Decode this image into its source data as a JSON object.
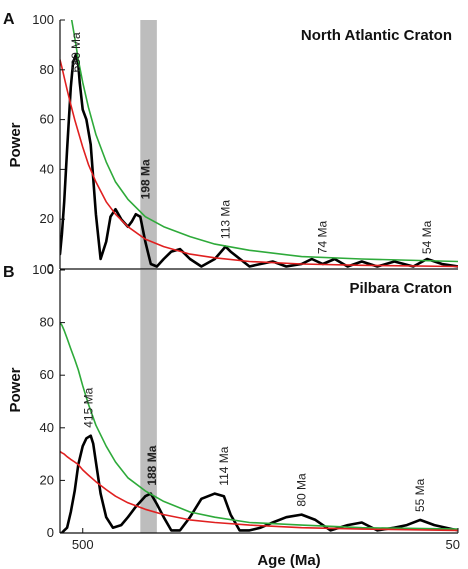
{
  "chart_data": [
    {
      "type": "line",
      "panel": "A",
      "title": "North Atlantic Craton",
      "xlabel": "",
      "ylabel": "Power",
      "x_tick_labels": [],
      "y_ticks": [
        0,
        20,
        40,
        60,
        80,
        100
      ],
      "ylim": [
        0,
        100
      ],
      "xlim_Ma": [
        1100,
        50
      ],
      "x_scale": "reciprocal",
      "highlight_band_Ma": [
        210,
        180
      ],
      "highlight_color": "#bdbdbd",
      "series": [
        {
          "color": "#000000",
          "x": [
            1100,
            1000,
            900,
            800,
            700,
            650,
            600,
            560,
            540,
            500,
            460,
            420,
            380,
            350,
            320,
            300,
            280,
            260,
            240,
            230,
            220,
            210,
            200,
            190,
            180,
            170,
            160,
            150,
            140,
            130,
            120,
            113,
            110,
            100,
            95,
            90,
            85,
            80,
            77,
            74,
            71,
            68,
            65,
            62,
            59,
            56,
            54,
            52,
            50
          ],
          "y": [
            6,
            14,
            27,
            48,
            73,
            83,
            86,
            82,
            75,
            64,
            60,
            50,
            22,
            4,
            11,
            21,
            24,
            20,
            17,
            19,
            22,
            21,
            11,
            2,
            1,
            4,
            7,
            8,
            4,
            1,
            4,
            9,
            7,
            1,
            2,
            3,
            1,
            2,
            4,
            2,
            4,
            1,
            3,
            1,
            3,
            1,
            4,
            2,
            1
          ]
        },
        {
          "color": "#2eaa3a",
          "x": [
            680,
            620,
            560,
            500,
            440,
            380,
            320,
            280,
            240,
            200,
            170,
            140,
            120,
            100,
            80,
            65,
            50
          ],
          "y": [
            100,
            93,
            84,
            75,
            65,
            54,
            43,
            35,
            28,
            21,
            17,
            13,
            10,
            7.5,
            5,
            4,
            3
          ]
        },
        {
          "color": "#e02020",
          "x": [
            1100,
            1000,
            900,
            800,
            700,
            620,
            560,
            500,
            440,
            380,
            320,
            280,
            240,
            200,
            170,
            140,
            120,
            100,
            80,
            65,
            50
          ],
          "y": [
            84,
            81,
            77,
            72,
            66,
            60,
            55,
            49,
            42,
            35,
            27,
            22,
            17,
            12,
            9,
            6,
            4.5,
            3,
            2,
            1.5,
            1
          ]
        }
      ],
      "annotations": [
        {
          "text": "680 Ma",
          "x_Ma": 600,
          "y": 79,
          "bold": false
        },
        {
          "text": "198 Ma",
          "x_Ma": 200,
          "y": 28,
          "bold": true
        },
        {
          "text": "113 Ma",
          "x_Ma": 113,
          "y": 12,
          "bold": false
        },
        {
          "text": "74 Ma",
          "x_Ma": 74,
          "y": 6,
          "bold": false
        },
        {
          "text": "54 Ma",
          "x_Ma": 54,
          "y": 6,
          "bold": false
        }
      ]
    },
    {
      "type": "line",
      "panel": "B",
      "title": "Pilbara Craton",
      "xlabel": "Age (Ma)",
      "ylabel": "Power",
      "x_tick_labels": [
        {
          "value": 500,
          "label": "500"
        },
        {
          "value": 50,
          "label": "50"
        }
      ],
      "y_ticks": [
        0,
        20,
        40,
        60,
        80,
        100
      ],
      "ylim": [
        0,
        100
      ],
      "xlim_Ma": [
        1100,
        50
      ],
      "x_scale": "reciprocal",
      "highlight_band_Ma": [
        210,
        180
      ],
      "highlight_color": "#bdbdbd",
      "series": [
        {
          "color": "#000000",
          "x": [
            1100,
            1000,
            900,
            800,
            700,
            620,
            560,
            500,
            460,
            420,
            400,
            380,
            350,
            320,
            290,
            260,
            240,
            220,
            200,
            190,
            180,
            170,
            160,
            150,
            140,
            130,
            120,
            114,
            110,
            105,
            100,
            95,
            90,
            85,
            80,
            76,
            72,
            68,
            65,
            62,
            59,
            57,
            55,
            53,
            50
          ],
          "y": [
            0,
            0,
            1,
            2,
            8,
            16,
            26,
            33,
            36,
            37,
            34,
            27,
            15,
            6,
            2,
            3,
            6,
            10,
            14,
            15,
            11,
            6,
            1,
            1,
            6,
            13,
            15,
            14,
            7,
            1,
            1,
            2,
            4,
            6,
            7,
            5,
            1,
            3,
            4,
            1,
            2,
            3,
            5,
            3,
            1
          ]
        },
        {
          "color": "#2eaa3a",
          "x": [
            1100,
            1000,
            900,
            800,
            700,
            620,
            560,
            500,
            440,
            380,
            320,
            280,
            240,
            200,
            170,
            140,
            120,
            100,
            80,
            65,
            50
          ],
          "y": [
            80,
            79,
            77,
            74,
            70,
            66,
            62,
            56,
            49,
            41,
            33,
            27,
            21,
            16,
            12,
            8,
            6,
            4,
            3,
            2,
            1.5
          ]
        },
        {
          "color": "#e02020",
          "x": [
            1100,
            1000,
            900,
            800,
            700,
            620,
            560,
            500,
            440,
            380,
            320,
            280,
            240,
            200,
            170,
            140,
            120,
            100,
            80,
            65,
            50
          ],
          "y": [
            31,
            30.5,
            30,
            29,
            28,
            27,
            26,
            24,
            22,
            19.5,
            16.5,
            14,
            11.5,
            9,
            7,
            5,
            4,
            3,
            2,
            1.5,
            1
          ]
        }
      ],
      "annotations": [
        {
          "text": "415 Ma",
          "x_Ma": 440,
          "y": 40,
          "bold": false
        },
        {
          "text": "188 Ma",
          "x_Ma": 188,
          "y": 18,
          "bold": true
        },
        {
          "text": "114 Ma",
          "x_Ma": 114,
          "y": 18,
          "bold": false
        },
        {
          "text": "80 Ma",
          "x_Ma": 80,
          "y": 10,
          "bold": false
        },
        {
          "text": "55 Ma",
          "x_Ma": 55,
          "y": 8,
          "bold": false
        }
      ]
    }
  ]
}
